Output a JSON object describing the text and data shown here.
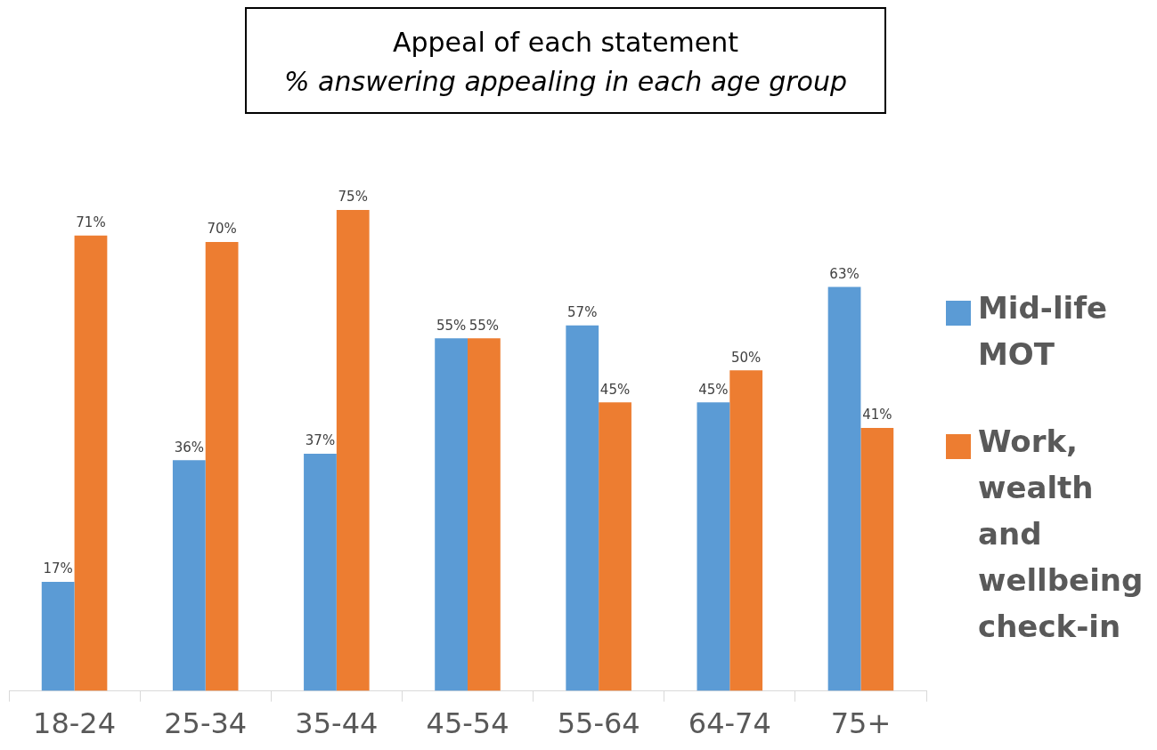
{
  "chart_data": {
    "type": "bar",
    "title": "Appeal of each statement",
    "subtitle": "% answering appealing in each age group",
    "categories": [
      "18-24",
      "25-34",
      "35-44",
      "45-54",
      "55-64",
      "64-74",
      "75+"
    ],
    "series": [
      {
        "name": "Mid-life MOT",
        "color": "#5b9bd5",
        "values": [
          17,
          36,
          37,
          55,
          57,
          45,
          63
        ],
        "value_labels": [
          "17%",
          "36%",
          "37%",
          "55%",
          "57%",
          "45%",
          "63%"
        ]
      },
      {
        "name": "Work, wealth and wellbeing check-in",
        "color": "#ed7d31",
        "values": [
          71,
          70,
          75,
          55,
          45,
          50,
          41
        ],
        "value_labels": [
          "71%",
          "70%",
          "75%",
          "55%",
          "45%",
          "50%",
          "41%"
        ]
      }
    ],
    "legend": "right",
    "grid": false
  }
}
